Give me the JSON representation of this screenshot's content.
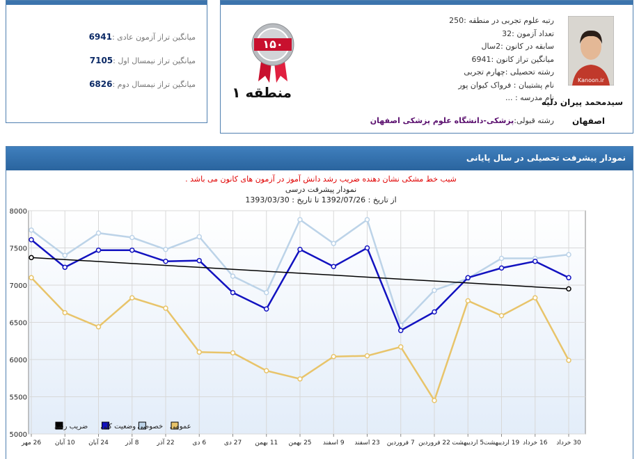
{
  "averages": [
    {
      "label": "میانگین تراز آزمون عادی :",
      "value": 6941
    },
    {
      "label": "میانگین تراز نیمسال اول :",
      "value": 7105
    },
    {
      "label": "میانگین تراز نیمسال دوم :",
      "value": 6826
    }
  ],
  "badge": {
    "number": "۱۵۰",
    "region": "منطقه ۱"
  },
  "profile": {
    "photo_caption": "Kanoon.ir",
    "name": "سیدمحمد پیران دلیه",
    "city": "اصفهان",
    "details": [
      "رتبه علوم تجربی در منطقه :250",
      "تعداد آزمون :32",
      "سابقه در کانون :2سال",
      "میانگین تراز کانون :6941",
      "رشته تحصیلی :چهارم تجربی",
      "نام پشتیبان : فرواک کیوان پور",
      "نام مدرسه : ..."
    ],
    "accepted_label": "رشته قبولی:",
    "accepted_value": "پزشکی-دانشگاه علوم پزشکی اصفهان"
  },
  "panel": {
    "title": "نمودار پیشرفت تحصیلی در سال پایانی"
  },
  "chart_data": {
    "type": "line",
    "note": "شیب خط مشکی نشان دهنده ضریب رشد دانش آموز در آزمون های کانون می باشد .",
    "title": "نمودار پیشرفت درسی",
    "subtitle": "از تاریخ : 1392/07/26 تا تاریخ : 1393/03/30",
    "categories": [
      "26 مهر",
      "10 آبان",
      "24 آبان",
      "8 آذر",
      "22 آذر",
      "6 دی",
      "27 دی",
      "11 بهمن",
      "25 بهمن",
      "9 اسفند",
      "23 اسفند",
      "7 فروردین",
      "22 فروردین",
      "5 اردیبهشت",
      "19 اردیبهشت",
      "16 خرداد",
      "30 خرداد"
    ],
    "series": [
      {
        "name": "عمومی",
        "color": "#e8c46a",
        "markers": "all",
        "values": [
          7100,
          6630,
          6440,
          6830,
          6690,
          6100,
          6090,
          5850,
          5740,
          6040,
          6050,
          6170,
          5450,
          6790,
          6590,
          6830,
          5990
        ]
      },
      {
        "name": "خصوصی",
        "color": "#bcd3e8",
        "markers": "all",
        "values": [
          7740,
          7400,
          7700,
          7640,
          7480,
          7650,
          7120,
          6900,
          7880,
          7560,
          7880,
          6460,
          6930,
          7090,
          7360,
          7360,
          7410
        ]
      },
      {
        "name": "وضعیت کلی",
        "color": "#1212c0",
        "markers": "all",
        "values": [
          7610,
          7240,
          7470,
          7470,
          7320,
          7330,
          6900,
          6680,
          7480,
          7250,
          7500,
          6390,
          6640,
          7100,
          7230,
          7320,
          7100
        ]
      },
      {
        "name": "ضریب رشد",
        "color": "#000000",
        "markers": "ends",
        "values": [
          7370,
          7344,
          7318,
          7291,
          7265,
          7239,
          7213,
          7186,
          7160,
          7134,
          7108,
          7081,
          7055,
          7029,
          7003,
          6976,
          6950
        ]
      }
    ],
    "ylim": [
      5000,
      8000
    ],
    "yticks": [
      5000,
      5500,
      6000,
      6500,
      7000,
      7500,
      8000
    ],
    "grid": true,
    "legend": "bottom-left"
  }
}
